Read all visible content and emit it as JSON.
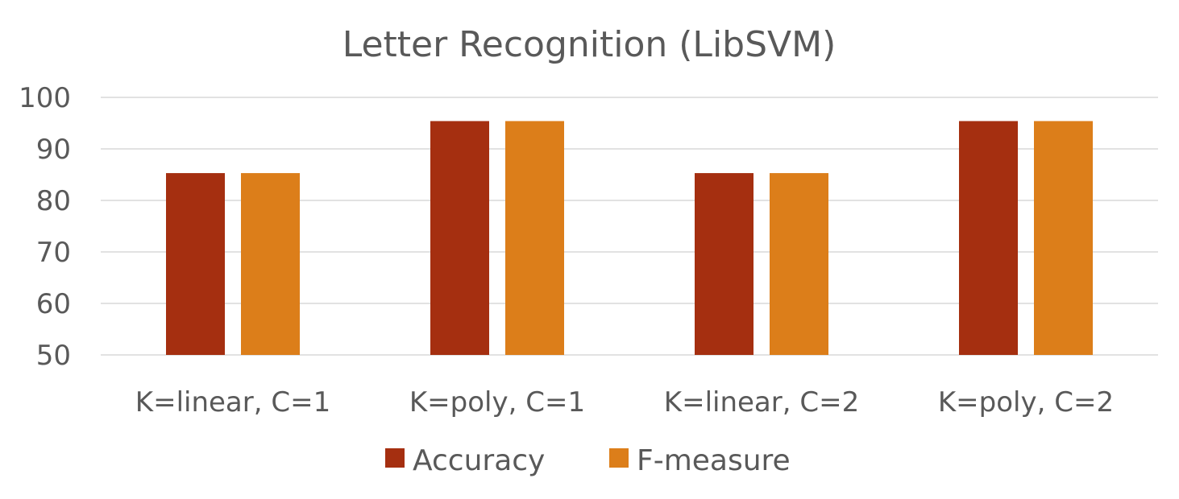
{
  "chart_data": {
    "type": "bar",
    "title": "Letter Recognition (LibSVM)",
    "xlabel": "",
    "ylabel": "",
    "categories": [
      "K=linear, C=1",
      "K=poly, C=1",
      "K=linear, C=2",
      "K=poly, C=2"
    ],
    "series": [
      {
        "name": "Accuracy",
        "values": [
          85.3,
          95.4,
          85.3,
          95.4
        ],
        "color": "#a52f10"
      },
      {
        "name": "F-measure",
        "values": [
          85.3,
          95.4,
          85.3,
          95.4
        ],
        "color": "#dc7e1a"
      }
    ],
    "ylim": [
      50,
      100
    ],
    "yticks": [
      "50",
      "60",
      "70",
      "80",
      "90",
      "100"
    ],
    "grid": true,
    "legend_position": "bottom"
  }
}
